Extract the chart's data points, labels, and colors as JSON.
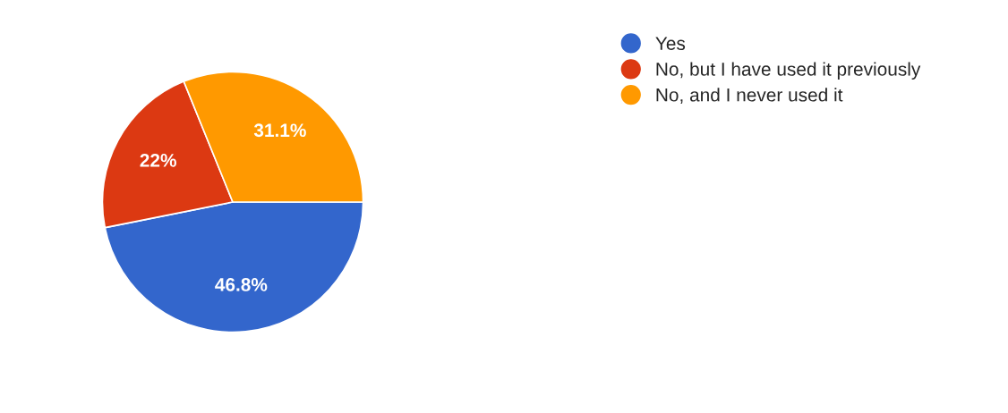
{
  "chart_data": {
    "type": "pie",
    "categories": [
      "Yes",
      "No, but I have used it previously",
      "No, and I never used it"
    ],
    "values": [
      46.8,
      22,
      31.1
    ],
    "colors": [
      "#3366cc",
      "#dc3912",
      "#ff9900"
    ],
    "value_labels": [
      "46.8%",
      "22%",
      "31.1%"
    ],
    "legend": "right"
  }
}
